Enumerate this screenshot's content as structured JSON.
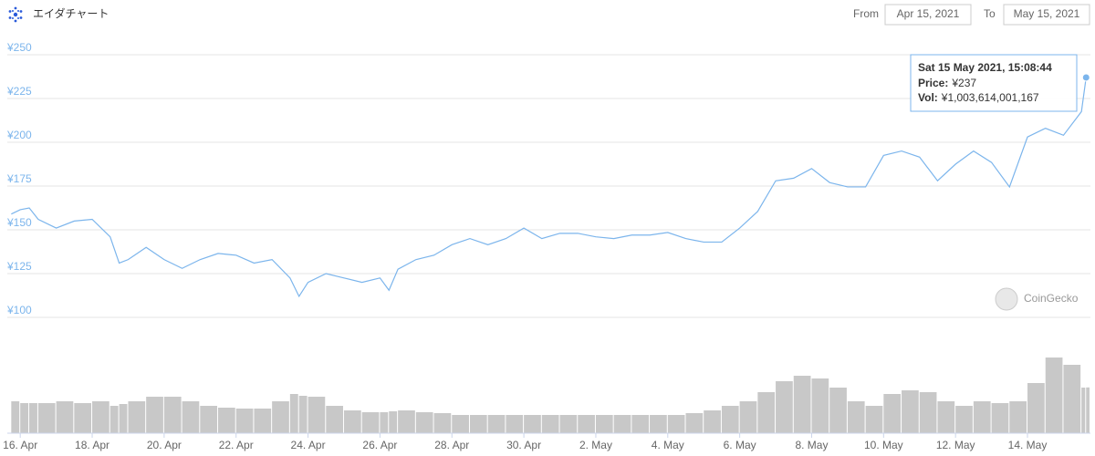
{
  "header": {
    "title": "エイダチャート",
    "from_label": "From",
    "from": "Apr 15, 2021",
    "to_label": "To",
    "to": "May 15, 2021"
  },
  "credit": "CoinGecko",
  "chart_data": {
    "type": "line",
    "x": [
      15.75,
      16,
      16.25,
      16.5,
      17,
      17.5,
      18,
      18.5,
      18.75,
      19,
      19.5,
      20,
      20.5,
      21,
      21.5,
      22,
      22.5,
      23,
      23.5,
      23.75,
      24,
      24.5,
      25,
      25.5,
      26,
      26.25,
      26.5,
      27,
      27.5,
      28,
      28.5,
      29,
      29.5,
      30,
      30.5,
      31,
      31.5,
      32,
      32.5,
      33,
      33.5,
      34,
      34.5,
      35,
      35.5,
      36,
      36.5,
      37,
      37.5,
      38,
      38.5,
      39,
      39.5,
      40,
      40.5,
      41,
      41.5,
      42,
      42.5,
      43,
      43.5,
      44,
      44.5,
      45,
      45.5,
      45.63
    ],
    "xlim": [
      15.64,
      45.75
    ],
    "xticks": [
      {
        "value": 16,
        "label": "16. Apr"
      },
      {
        "value": 18,
        "label": "18. Apr"
      },
      {
        "value": 20,
        "label": "20. Apr"
      },
      {
        "value": 22,
        "label": "22. Apr"
      },
      {
        "value": 24,
        "label": "24. Apr"
      },
      {
        "value": 26,
        "label": "26. Apr"
      },
      {
        "value": 28,
        "label": "28. Apr"
      },
      {
        "value": 30,
        "label": "30. Apr"
      },
      {
        "value": 32,
        "label": "2. May"
      },
      {
        "value": 34,
        "label": "4. May"
      },
      {
        "value": 36,
        "label": "6. May"
      },
      {
        "value": 38,
        "label": "8. May"
      },
      {
        "value": 40,
        "label": "10. May"
      },
      {
        "value": 42,
        "label": "12. May"
      },
      {
        "value": 44,
        "label": "14. May"
      }
    ],
    "ylim": [
      100,
      250
    ],
    "yticks": [
      {
        "value": 100,
        "label": "¥100"
      },
      {
        "value": 125,
        "label": "¥125"
      },
      {
        "value": 150,
        "label": "¥150"
      },
      {
        "value": 175,
        "label": "¥175"
      },
      {
        "value": 200,
        "label": "¥200"
      },
      {
        "value": 225,
        "label": "¥225"
      },
      {
        "value": 250,
        "label": "¥250"
      }
    ],
    "y2lim": [
      0,
      2000000000000
    ],
    "grid": true,
    "series": [
      {
        "color": "#7cb5ec",
        "values": [
          159,
          161.5,
          162.5,
          156,
          151,
          155,
          156,
          146,
          131,
          133,
          140,
          133,
          128,
          133,
          136.5,
          135.5,
          131,
          133,
          122.5,
          112,
          120,
          125,
          122.5,
          120,
          122.5,
          115.5,
          127.5,
          133,
          135.5,
          141.5,
          145,
          141.5,
          145,
          151,
          145,
          148,
          148,
          146,
          145,
          147,
          147,
          148.5,
          145,
          143,
          143,
          151,
          160.5,
          178,
          179.5,
          185,
          177,
          174.5,
          174.5,
          192.5,
          195,
          191.5,
          178,
          187.5,
          195,
          188.5,
          174.5,
          203,
          208,
          204,
          217.5,
          237
        ]
      },
      {
        "type": "bar",
        "axis": "y2",
        "color": "#c8c8c8",
        "values": [
          700000000000,
          660000000000,
          660000000000,
          660000000000,
          700000000000,
          660000000000,
          700000000000,
          600000000000,
          640000000000,
          700000000000,
          800000000000,
          800000000000,
          700000000000,
          600000000000,
          560000000000,
          540000000000,
          540000000000,
          700000000000,
          860000000000,
          820000000000,
          800000000000,
          600000000000,
          500000000000,
          460000000000,
          460000000000,
          480000000000,
          500000000000,
          460000000000,
          440000000000,
          400000000000,
          400000000000,
          400000000000,
          400000000000,
          400000000000,
          400000000000,
          400000000000,
          400000000000,
          400000000000,
          400000000000,
          400000000000,
          400000000000,
          400000000000,
          440000000000,
          500000000000,
          600000000000,
          700000000000,
          900000000000,
          1140000000000,
          1260000000000,
          1200000000000,
          1000000000000,
          700000000000,
          600000000000,
          860000000000,
          940000000000,
          900000000000,
          700000000000,
          600000000000,
          700000000000,
          660000000000,
          700000000000,
          1100000000000,
          1660000000000,
          1500000000000,
          1000000000000,
          1003614001167
        ]
      }
    ],
    "tooltip": {
      "title": "Sat 15 May 2021, 15:08:44",
      "lines": [
        {
          "label": "Price:",
          "value": "¥237"
        },
        {
          "label": "Vol:",
          "value": "¥1,003,614,001,167"
        }
      ]
    }
  }
}
